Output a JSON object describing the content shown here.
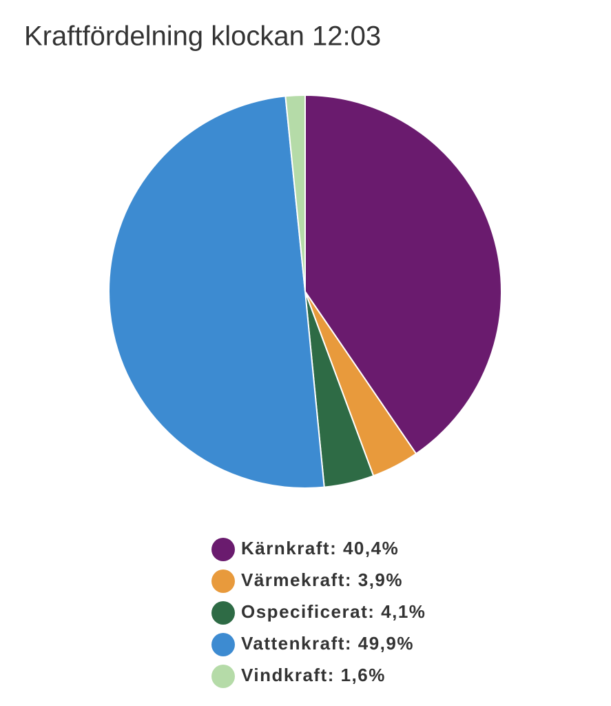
{
  "chart_data": {
    "type": "pie",
    "title": "Kraftfördelning klockan 12:03",
    "values": [
      40.4,
      3.9,
      4.1,
      49.9,
      1.6
    ],
    "legend": [
      "Kärnkraft: 40,4%",
      "Värmekraft: 3,9%",
      "Ospecificerat: 4,1%",
      "Vattenkraft: 49,9%",
      "Vindkraft: 1,6%"
    ],
    "colors": [
      "#6a1b6e",
      "#e89a3c",
      "#2e6b45",
      "#3d8bd1",
      "#b5dba8"
    ]
  }
}
